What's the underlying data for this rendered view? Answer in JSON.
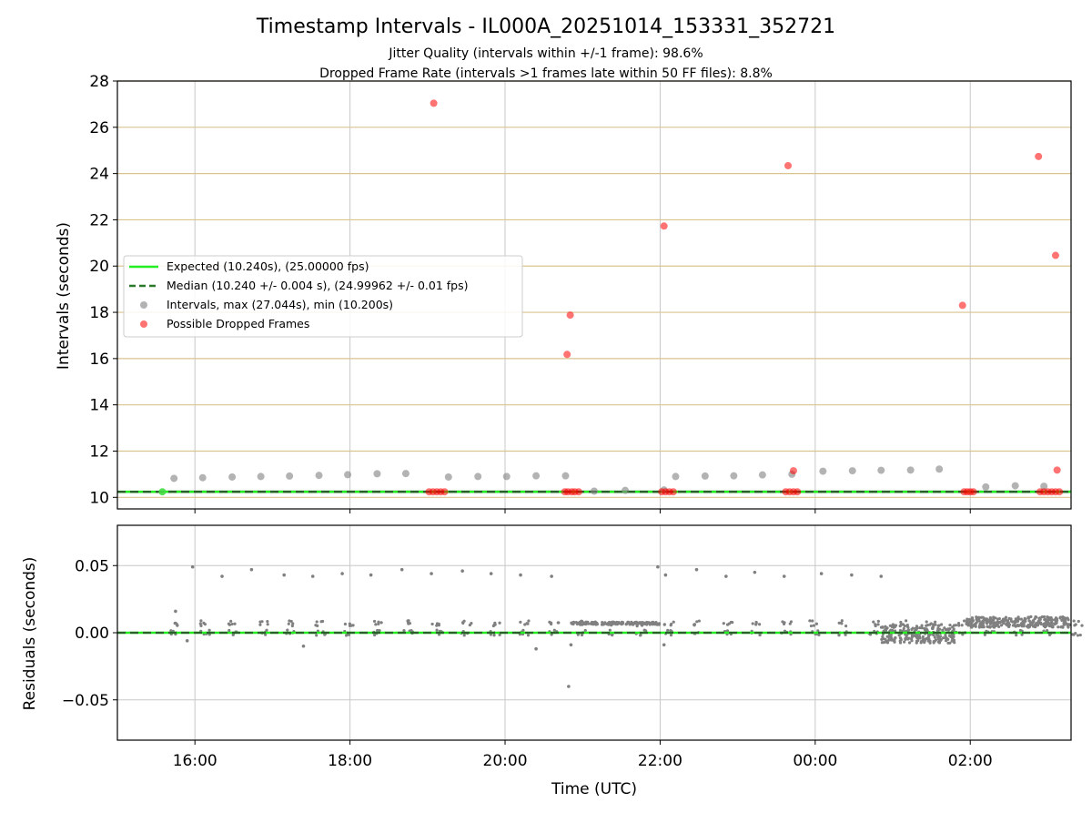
{
  "figure": {
    "title": "Timestamp Intervals - IL000A_20251014_153331_352721",
    "subtitle_line1": "Jitter Quality (intervals within +/-1 frame): 98.6%",
    "subtitle_line2": "Dropped Frame Rate (intervals >1 frames late within 50 FF files): 8.8%"
  },
  "chart_data": [
    {
      "type": "scatter",
      "panel": "intervals",
      "title": "Timestamp Intervals - IL000A_20251014_153331_352721",
      "xlabel": "",
      "ylabel": "Intervals (seconds)",
      "x_unit": "hours since 00:00 UTC on the start day",
      "xlim": [
        15.0,
        27.3
      ],
      "ylim": [
        9.5,
        28
      ],
      "yticks": [
        10,
        12,
        14,
        16,
        18,
        20,
        22,
        24,
        26,
        28
      ],
      "ytick_labels": [
        "10",
        "12",
        "14",
        "16",
        "18",
        "20",
        "22",
        "24",
        "26",
        "28"
      ],
      "grid": true,
      "legend_position": "center-left",
      "legend": {
        "expected": "Expected (10.240s), (25.00000 fps)",
        "median": "Median (10.240 +/- 0.004 s), (24.99962 +/- 0.01 fps)",
        "intervals": "Intervals, max (27.044s), min (10.200s)",
        "dropped": "Possible Dropped Frames"
      },
      "expected_value": 10.24,
      "median_value": 10.24,
      "band_x": [
        15.58,
        27.3
      ],
      "series": [
        {
          "name": "Intervals, max (27.044s), min (10.200s)",
          "color": "#808080",
          "x": [
            15.73,
            16.1,
            16.48,
            16.85,
            17.22,
            17.6,
            17.97,
            18.35,
            18.72,
            19.27,
            19.65,
            20.02,
            20.4,
            20.78,
            21.15,
            21.55,
            22.05,
            22.2,
            22.58,
            22.95,
            23.32,
            23.7,
            24.1,
            24.48,
            24.85,
            25.23,
            25.6,
            26.2,
            26.58,
            26.95
          ],
          "y": [
            10.82,
            10.85,
            10.88,
            10.9,
            10.92,
            10.95,
            10.98,
            11.02,
            11.03,
            10.88,
            10.9,
            10.9,
            10.93,
            10.93,
            10.27,
            10.3,
            10.32,
            10.9,
            10.92,
            10.93,
            10.97,
            11.0,
            11.13,
            11.15,
            11.17,
            11.18,
            11.22,
            10.45,
            10.5,
            10.48
          ]
        },
        {
          "name": "Possible Dropped Frames",
          "color": "#ff0000",
          "x": [
            19.08,
            20.8,
            20.84,
            22.05,
            23.65,
            23.72,
            25.9,
            26.88,
            27.1,
            27.12
          ],
          "y": [
            27.04,
            16.18,
            17.88,
            21.73,
            24.34,
            11.15,
            18.3,
            24.74,
            20.46,
            11.18
          ]
        },
        {
          "name": "Possible Dropped Frames cluster",
          "color": "#ff0000",
          "x": [
            19.02,
            19.07,
            19.12,
            19.17,
            19.22,
            20.77,
            20.81,
            20.86,
            20.9,
            20.95,
            22.02,
            22.07,
            22.12,
            22.17,
            23.62,
            23.67,
            23.72,
            23.77,
            25.92,
            25.96,
            26.0,
            26.04,
            26.9,
            26.95,
            27.0,
            27.05,
            27.1,
            27.15
          ],
          "y": [
            10.24,
            10.24,
            10.24,
            10.24,
            10.24,
            10.24,
            10.24,
            10.24,
            10.24,
            10.24,
            10.24,
            10.24,
            10.24,
            10.24,
            10.24,
            10.24,
            10.24,
            10.24,
            10.24,
            10.24,
            10.24,
            10.24,
            10.24,
            10.24,
            10.24,
            10.24,
            10.24,
            10.24
          ]
        }
      ]
    },
    {
      "type": "scatter",
      "panel": "residuals",
      "xlabel": "Time (UTC)",
      "ylabel": "Residuals (seconds)",
      "x_unit": "hours since 00:00 UTC on the start day",
      "xlim": [
        15.0,
        27.3
      ],
      "ylim": [
        -0.08,
        0.08
      ],
      "yticks": [
        0.05,
        0.0,
        -0.05
      ],
      "ytick_labels": [
        "0.05",
        "0.00",
        "−0.05"
      ],
      "xticks": [
        16,
        18,
        20,
        22,
        24,
        26
      ],
      "xtick_labels": [
        "16:00",
        "18:00",
        "20:00",
        "22:00",
        "00:00",
        "02:00"
      ],
      "grid": true,
      "zero_line": 0.0,
      "series": [
        {
          "name": "",
          "color": "#808080",
          "x": [
            15.97,
            16.35,
            16.73,
            17.15,
            17.52,
            17.9,
            18.27,
            18.67,
            19.05,
            19.45,
            19.82,
            20.2,
            20.6,
            21.97,
            22.07,
            22.47,
            22.85,
            23.22,
            23.6,
            24.08,
            24.47,
            24.85,
            15.75,
            15.9,
            17.4,
            20.4,
            20.82,
            20.85,
            22.05
          ],
          "y": [
            0.049,
            0.042,
            0.047,
            0.043,
            0.042,
            0.044,
            0.043,
            0.047,
            0.044,
            0.046,
            0.044,
            0.043,
            0.042,
            0.049,
            0.043,
            0.047,
            0.042,
            0.045,
            0.042,
            0.044,
            0.043,
            0.042,
            0.016,
            -0.006,
            -0.01,
            -0.012,
            -0.04,
            -0.009,
            -0.009
          ]
        }
      ]
    }
  ]
}
